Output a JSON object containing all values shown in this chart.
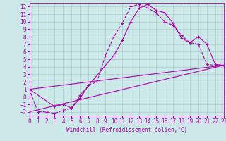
{
  "xlabel": "Windchill (Refroidissement éolien,°C)",
  "background_color": "#cce8e8",
  "grid_color": "#aacccc",
  "line_color": "#aa00aa",
  "xlim": [
    0,
    23
  ],
  "ylim": [
    -2.5,
    12.5
  ],
  "xticks": [
    0,
    1,
    2,
    3,
    4,
    5,
    6,
    7,
    8,
    9,
    10,
    11,
    12,
    13,
    14,
    15,
    16,
    17,
    18,
    19,
    20,
    21,
    22,
    23
  ],
  "yticks": [
    -2,
    -1,
    0,
    1,
    2,
    3,
    4,
    5,
    6,
    7,
    8,
    9,
    10,
    11,
    12
  ],
  "curve1_x": [
    0,
    1,
    2,
    3,
    4,
    5,
    6,
    7,
    8,
    9,
    10,
    11,
    12,
    13,
    14,
    15,
    16,
    17,
    18,
    19,
    20,
    21,
    22,
    23
  ],
  "curve1_y": [
    1,
    -2,
    -2,
    -2.2,
    -1.8,
    -1.5,
    0.2,
    1.5,
    2.0,
    5.5,
    8.0,
    9.8,
    12.0,
    12.3,
    11.8,
    11.2,
    10.0,
    9.5,
    8.2,
    7.2,
    7.0,
    4.3,
    4.2,
    4.2
  ],
  "curve2_x": [
    0,
    3,
    4,
    5,
    6,
    7,
    10,
    11,
    12,
    13,
    14,
    15,
    16,
    17,
    18,
    19,
    20,
    21,
    22,
    23
  ],
  "curve2_y": [
    1,
    -1.3,
    -1.0,
    -1.5,
    -0.2,
    1.5,
    5.5,
    7.5,
    10.0,
    11.8,
    12.3,
    11.5,
    11.2,
    9.8,
    7.8,
    7.2,
    8.0,
    7.0,
    4.3,
    4.2
  ],
  "line3_x": [
    0,
    23
  ],
  "line3_y": [
    1,
    4.2
  ],
  "line4_x": [
    0,
    23
  ],
  "line4_y": [
    -2,
    4.2
  ],
  "tick_fontsize": 5.5,
  "xlabel_fontsize": 5.5,
  "linewidth": 0.8,
  "markersize": 3.5
}
